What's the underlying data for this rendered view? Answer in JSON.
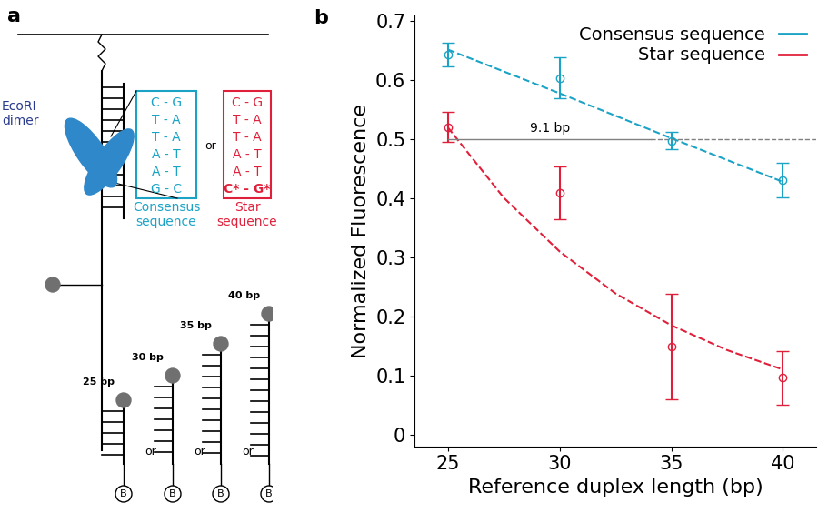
{
  "panel_a": {
    "label": "a",
    "enzyme": "EcoRI\ndimer",
    "consensus": {
      "caption": "Consensus\nsequence",
      "color": "#1ba3c6",
      "pairs": [
        "C - G",
        "T - A",
        "T - A",
        "A - T",
        "A - T",
        "G - C"
      ]
    },
    "star": {
      "caption": "Star\nsequence",
      "color": "#e0203a",
      "pairs": [
        "C - G",
        "T - A",
        "T - A",
        "A - T",
        "A - T",
        "C* - G*"
      ]
    },
    "separator": "or",
    "reference_duplexes": [
      "25 bp",
      "30 bp",
      "35 bp",
      "40 bp"
    ],
    "bead": "B"
  },
  "chart_data": {
    "type": "line",
    "panel_label": "b",
    "x": [
      25,
      30,
      35,
      40
    ],
    "xlabel": "Reference duplex length (bp)",
    "ylabel": "Normalized Fluorescence",
    "xlim": [
      23.5,
      41.5
    ],
    "ylim": [
      -0.02,
      0.71
    ],
    "xticks": [
      25,
      30,
      35,
      40
    ],
    "yticks": [
      0,
      0.1,
      0.2,
      0.3,
      0.4,
      0.5,
      0.6,
      0.7
    ],
    "legend": "upper right",
    "series": [
      {
        "name": "Consensus sequence",
        "color": "#1ba3c6",
        "marker": "o",
        "line_style": "dashed",
        "values": [
          0.643,
          0.604,
          0.498,
          0.431
        ],
        "errors": [
          0.02,
          0.035,
          0.015,
          0.03
        ],
        "fit_x": [
          25,
          27.5,
          30,
          32.5,
          35,
          37.5,
          40
        ],
        "fit": [
          0.652,
          0.615,
          0.578,
          0.54,
          0.502,
          0.465,
          0.428
        ]
      },
      {
        "name": "Star sequence",
        "color": "#e0203a",
        "marker": "o",
        "line_style": "dashed",
        "values": [
          0.521,
          0.409,
          0.149,
          0.096
        ],
        "errors": [
          0.025,
          0.045,
          0.09,
          0.045
        ],
        "fit_x": [
          25,
          27.5,
          30,
          32.5,
          35,
          37.5,
          40
        ],
        "fit": [
          0.52,
          0.401,
          0.31,
          0.239,
          0.185,
          0.143,
          0.11
        ]
      }
    ],
    "reference_line": 0.5,
    "annotation": {
      "text": "9.1 bp",
      "x_start": 25,
      "x_end": 34.1
    }
  }
}
